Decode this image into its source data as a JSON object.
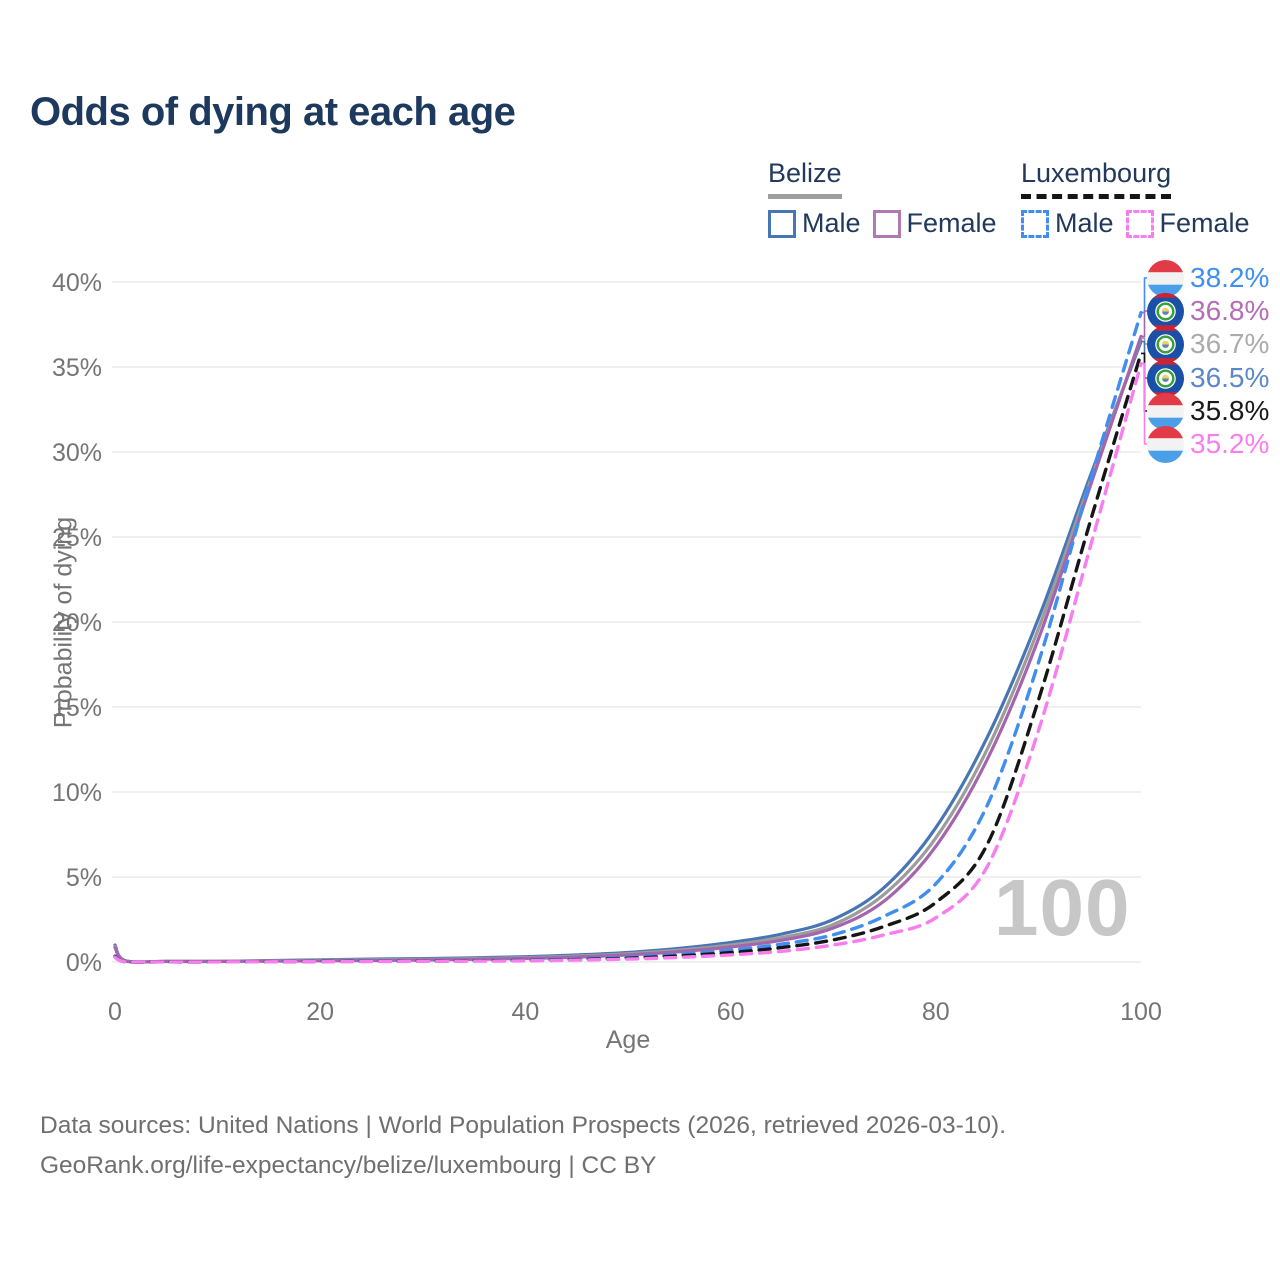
{
  "title": "Odds of dying at each age",
  "watermark": "100",
  "footer": {
    "line1": "Data sources: United Nations | World Population Prospects (2026, retrieved 2026-03-10).",
    "line2": "GeoRank.org/life-expectancy/belize/luxembourg | CC BY"
  },
  "colors": {
    "title_text": "#1d3a5e",
    "legend_text": "#22395c",
    "axis_text": "#757575",
    "grid": "#ececec",
    "watermark": "#c7c7c7",
    "belize_male": "#4876b4",
    "belize_both": "#9c9c9c",
    "belize_female": "#a565ac",
    "lux_male": "#3f8ef0",
    "lux_both": "#151515",
    "lux_female": "#f87ef0"
  },
  "legend": {
    "groups": [
      {
        "country": "Belize",
        "line_style": "solid",
        "underline_color": "#9e9e9e",
        "items": [
          {
            "label": "Male",
            "color": "#4876b4"
          },
          {
            "label": "Female",
            "color": "#b279b2"
          }
        ]
      },
      {
        "country": "Luxembourg",
        "line_style": "dashed",
        "underline_color": "#151515",
        "items": [
          {
            "label": "Male",
            "color": "#3f8ef0"
          },
          {
            "label": "Female",
            "color": "#f87ef0"
          }
        ]
      }
    ]
  },
  "chart_data": {
    "type": "line",
    "title": "Odds of dying at each age",
    "xlabel": "Age",
    "ylabel": "Probability of dying",
    "xlim": [
      0,
      100
    ],
    "ylim": [
      0,
      40
    ],
    "x_ticks": [
      0,
      20,
      40,
      60,
      80,
      100
    ],
    "y_ticks": [
      0,
      5,
      10,
      15,
      20,
      25,
      30,
      35,
      40
    ],
    "y_tick_suffix": "%",
    "grid": "horizontal",
    "legend_position": "top-right",
    "x": [
      0,
      1,
      5,
      10,
      15,
      20,
      25,
      30,
      35,
      40,
      45,
      50,
      55,
      60,
      65,
      70,
      75,
      80,
      85,
      90,
      95,
      100
    ],
    "series": [
      {
        "name": "Belize Male",
        "style": "solid",
        "color": "#4876b4",
        "values": [
          1.0,
          0.08,
          0.04,
          0.04,
          0.08,
          0.13,
          0.17,
          0.2,
          0.25,
          0.31,
          0.41,
          0.56,
          0.8,
          1.15,
          1.65,
          2.5,
          4.4,
          7.9,
          13.2,
          20.2,
          28.5,
          36.5
        ]
      },
      {
        "name": "Belize Both sexes",
        "style": "solid",
        "color": "#9c9c9c",
        "values": [
          0.92,
          0.07,
          0.035,
          0.035,
          0.065,
          0.1,
          0.13,
          0.16,
          0.2,
          0.26,
          0.35,
          0.49,
          0.7,
          1.0,
          1.45,
          2.2,
          4.0,
          7.3,
          12.5,
          19.6,
          28.2,
          36.7
        ]
      },
      {
        "name": "Belize Female",
        "style": "solid",
        "color": "#a565ac",
        "values": [
          0.84,
          0.06,
          0.03,
          0.03,
          0.05,
          0.07,
          0.09,
          0.12,
          0.16,
          0.21,
          0.29,
          0.42,
          0.61,
          0.88,
          1.28,
          2.0,
          3.6,
          6.8,
          11.9,
          19.0,
          27.9,
          36.8
        ]
      },
      {
        "name": "Luxembourg Male",
        "style": "dashed",
        "color": "#3f8ef0",
        "values": [
          0.35,
          0.02,
          0.01,
          0.01,
          0.02,
          0.04,
          0.05,
          0.06,
          0.08,
          0.11,
          0.17,
          0.28,
          0.45,
          0.7,
          1.05,
          1.6,
          2.7,
          4.6,
          9.2,
          17.6,
          28.2,
          38.2
        ]
      },
      {
        "name": "Luxembourg Both sexes",
        "style": "dashed",
        "color": "#151515",
        "values": [
          0.32,
          0.018,
          0.009,
          0.009,
          0.017,
          0.03,
          0.04,
          0.05,
          0.07,
          0.09,
          0.14,
          0.22,
          0.36,
          0.55,
          0.85,
          1.3,
          2.1,
          3.5,
          6.9,
          15.4,
          25.8,
          35.8
        ]
      },
      {
        "name": "Luxembourg Female",
        "style": "dashed",
        "color": "#f87ef0",
        "values": [
          0.28,
          0.015,
          0.008,
          0.008,
          0.014,
          0.02,
          0.03,
          0.04,
          0.05,
          0.07,
          0.11,
          0.17,
          0.27,
          0.42,
          0.63,
          1.0,
          1.6,
          2.6,
          5.6,
          13.6,
          24.3,
          35.2
        ]
      }
    ],
    "end_labels": [
      {
        "series": 3,
        "value": "38.2%",
        "text_color": "#3f8ef0",
        "flag": "luxembourg",
        "series_name": "Luxembourg Male"
      },
      {
        "series": 2,
        "value": "36.8%",
        "text_color": "#b56db5",
        "flag": "belize",
        "series_name": "Belize Female"
      },
      {
        "series": 1,
        "value": "36.7%",
        "text_color": "#ababab",
        "flag": "belize",
        "series_name": "Belize Both sexes"
      },
      {
        "series": 0,
        "value": "36.5%",
        "text_color": "#5c88ca",
        "flag": "belize",
        "series_name": "Belize Male"
      },
      {
        "series": 4,
        "value": "35.8%",
        "text_color": "#1a1a1a",
        "flag": "luxembourg",
        "series_name": "Luxembourg Both sexes"
      },
      {
        "series": 5,
        "value": "35.2%",
        "text_color": "#f87ef0",
        "flag": "luxembourg",
        "series_name": "Luxembourg Female"
      }
    ]
  }
}
